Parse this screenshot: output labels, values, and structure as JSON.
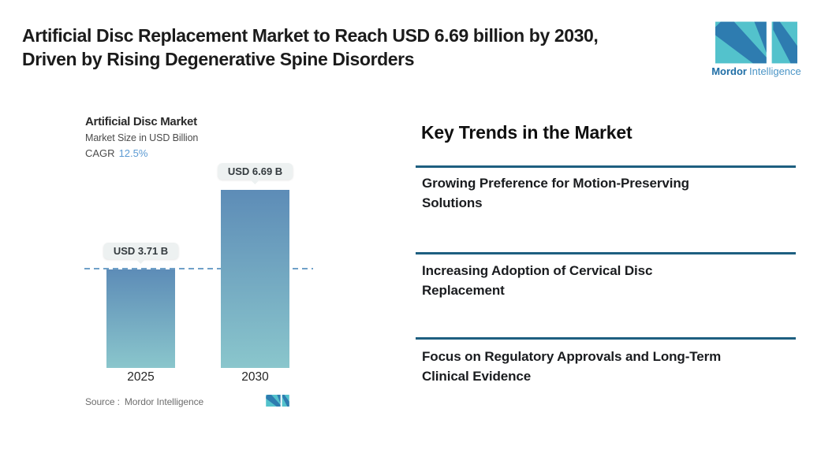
{
  "header": {
    "title_line1": "Artificial Disc Replacement Market to Reach USD 6.69 billion by 2030,",
    "title_line2": "Driven by Rising Degenerative Spine Disorders",
    "logo": {
      "brand_bold": "Mordor",
      "brand_light": "Intelligence"
    }
  },
  "chart": {
    "title": "Artificial Disc Market",
    "subtitle": "Market Size in USD Billion",
    "cagr_label": "CAGR",
    "cagr_value": "12.5%",
    "source_label": "Source :",
    "source_value": "Mordor Intelligence"
  },
  "chart_data": {
    "type": "bar",
    "title": "Artificial Disc Market",
    "subtitle": "Market Size in USD Billion",
    "unit": "USD Billion",
    "cagr_percent": 12.5,
    "categories": [
      "2025",
      "2030"
    ],
    "values": [
      3.71,
      6.69
    ],
    "value_labels": [
      "USD 3.71 B",
      "USD 6.69 B"
    ],
    "ylim": [
      0,
      7.6
    ],
    "reference_line_value": 3.71,
    "grid": false,
    "legend": "none"
  },
  "trends": {
    "heading": "Key Trends in the Market",
    "items": [
      {
        "line1": "Growing Preference for Motion-Preserving",
        "line2": "Solutions"
      },
      {
        "line1": "Increasing Adoption of Cervical Disc",
        "line2": "Replacement"
      },
      {
        "line1": "Focus on Regulatory Approvals and Long-Term",
        "line2": "Clinical Evidence"
      }
    ]
  },
  "colors": {
    "accent_blue": "#5d9bd3",
    "bar_gradient_top": "#5d8cb7",
    "bar_gradient_bottom": "#8ac6cc",
    "dashed_line": "#6fa0c8",
    "divider": "#1e5f80",
    "badge_bg": "#edf1f1",
    "logo_teal": "#53c2cc",
    "logo_blue": "#2e7cb0",
    "brand_text_dark": "#1f6ea6",
    "brand_text_light": "#4b95c6"
  }
}
